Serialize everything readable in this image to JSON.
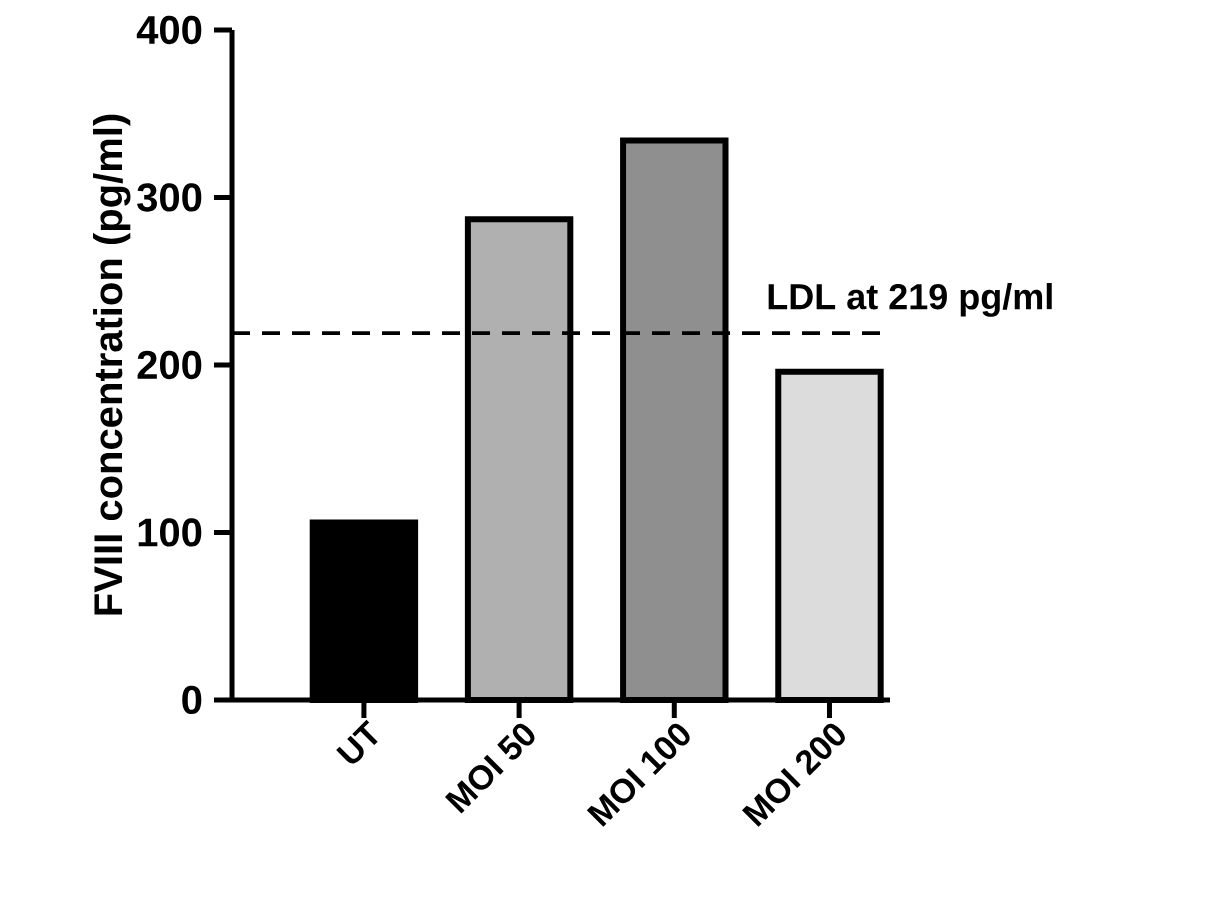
{
  "chart_data": {
    "type": "bar",
    "ylabel": "FVIII concentration (pg/ml)",
    "categories": [
      "UT",
      "MOI 50",
      "MOI 100",
      "MOI 200"
    ],
    "values": [
      106,
      287,
      334,
      196
    ],
    "colors": [
      "#000000",
      "#b0b0b0",
      "#8f8f8f",
      "#dcdcdc"
    ],
    "ylim": [
      0,
      400
    ],
    "yticks": [
      0,
      100,
      200,
      300,
      400
    ],
    "ref_lines": [
      {
        "axis": "y",
        "value": 219,
        "label": "LDL at 219 pg/ml",
        "line_style": "dashed"
      }
    ]
  }
}
